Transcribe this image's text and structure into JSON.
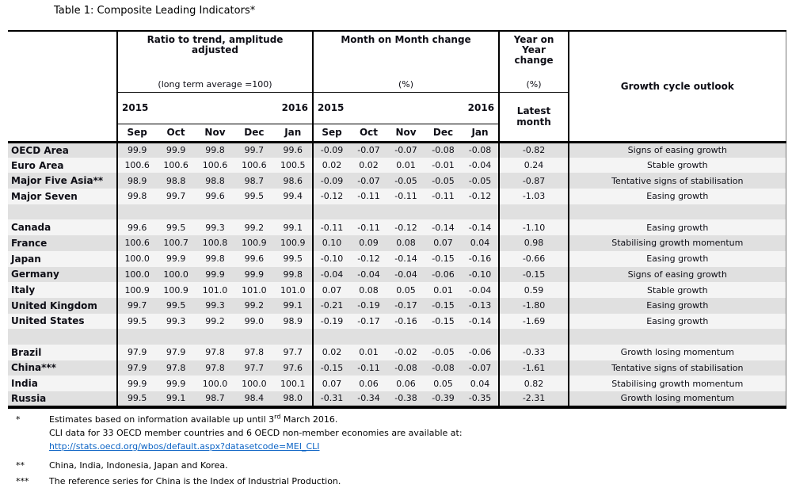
{
  "title": "Table 1: Composite Leading Indicators*",
  "header": {
    "ratio": {
      "title": "Ratio to trend, amplitude adjusted",
      "subtitle": "(long term average =100)",
      "year_left": "2015",
      "year_right": "2016",
      "months": [
        "Sep",
        "Oct",
        "Nov",
        "Dec",
        "Jan"
      ]
    },
    "mom": {
      "title": "Month on Month change",
      "subtitle": "(%)",
      "year_left": "2015",
      "year_right": "2016",
      "months": [
        "Sep",
        "Oct",
        "Nov",
        "Dec",
        "Jan"
      ]
    },
    "yoy": {
      "title": "Year on Year change",
      "subtitle": "(%)",
      "latest": "Latest month"
    },
    "outlook": {
      "title": "Growth cycle outlook"
    }
  },
  "rows": [
    {
      "name": "OECD Area",
      "ratio": [
        "99.9",
        "99.9",
        "99.8",
        "99.7",
        "99.6"
      ],
      "mom": [
        "-0.09",
        "-0.07",
        "-0.07",
        "-0.08",
        "-0.08"
      ],
      "yoy": "-0.82",
      "outlook": "Signs of easing growth"
    },
    {
      "name": "Euro Area",
      "ratio": [
        "100.6",
        "100.6",
        "100.6",
        "100.6",
        "100.5"
      ],
      "mom": [
        "0.02",
        "0.02",
        "0.01",
        "-0.01",
        "-0.04"
      ],
      "yoy": "0.24",
      "outlook": "Stable growth"
    },
    {
      "name": "Major Five Asia**",
      "ratio": [
        "98.9",
        "98.8",
        "98.8",
        "98.7",
        "98.6"
      ],
      "mom": [
        "-0.09",
        "-0.07",
        "-0.05",
        "-0.05",
        "-0.05"
      ],
      "yoy": "-0.87",
      "outlook": "Tentative signs of stabilisation"
    },
    {
      "name": "Major Seven",
      "ratio": [
        "99.8",
        "99.7",
        "99.6",
        "99.5",
        "99.4"
      ],
      "mom": [
        "-0.12",
        "-0.11",
        "-0.11",
        "-0.11",
        "-0.12"
      ],
      "yoy": "-1.03",
      "outlook": "Easing growth"
    },
    {
      "spacer": true
    },
    {
      "name": "Canada",
      "ratio": [
        "99.6",
        "99.5",
        "99.3",
        "99.2",
        "99.1"
      ],
      "mom": [
        "-0.11",
        "-0.11",
        "-0.12",
        "-0.14",
        "-0.14"
      ],
      "yoy": "-1.10",
      "outlook": "Easing growth"
    },
    {
      "name": "France",
      "ratio": [
        "100.6",
        "100.7",
        "100.8",
        "100.9",
        "100.9"
      ],
      "mom": [
        "0.10",
        "0.09",
        "0.08",
        "0.07",
        "0.04"
      ],
      "yoy": "0.98",
      "outlook": "Stabilising growth momentum"
    },
    {
      "name": "Japan",
      "ratio": [
        "100.0",
        "99.9",
        "99.8",
        "99.6",
        "99.5"
      ],
      "mom": [
        "-0.10",
        "-0.12",
        "-0.14",
        "-0.15",
        "-0.16"
      ],
      "yoy": "-0.66",
      "outlook": "Easing growth"
    },
    {
      "name": "Germany",
      "ratio": [
        "100.0",
        "100.0",
        "99.9",
        "99.9",
        "99.8"
      ],
      "mom": [
        "-0.04",
        "-0.04",
        "-0.04",
        "-0.06",
        "-0.10"
      ],
      "yoy": "-0.15",
      "outlook": "Signs of easing growth"
    },
    {
      "name": "Italy",
      "ratio": [
        "100.9",
        "100.9",
        "101.0",
        "101.0",
        "101.0"
      ],
      "mom": [
        "0.07",
        "0.08",
        "0.05",
        "0.01",
        "-0.04"
      ],
      "yoy": "0.59",
      "outlook": "Stable growth"
    },
    {
      "name": "United Kingdom",
      "ratio": [
        "99.7",
        "99.5",
        "99.3",
        "99.2",
        "99.1"
      ],
      "mom": [
        "-0.21",
        "-0.19",
        "-0.17",
        "-0.15",
        "-0.13"
      ],
      "yoy": "-1.80",
      "outlook": "Easing growth"
    },
    {
      "name": "United States",
      "ratio": [
        "99.5",
        "99.3",
        "99.2",
        "99.0",
        "98.9"
      ],
      "mom": [
        "-0.19",
        "-0.17",
        "-0.16",
        "-0.15",
        "-0.14"
      ],
      "yoy": "-1.69",
      "outlook": "Easing growth"
    },
    {
      "spacer": true
    },
    {
      "name": "Brazil",
      "ratio": [
        "97.9",
        "97.9",
        "97.8",
        "97.8",
        "97.7"
      ],
      "mom": [
        "0.02",
        "0.01",
        "-0.02",
        "-0.05",
        "-0.06"
      ],
      "yoy": "-0.33",
      "outlook": "Growth losing momentum"
    },
    {
      "name": "China***",
      "ratio": [
        "97.9",
        "97.8",
        "97.8",
        "97.7",
        "97.6"
      ],
      "mom": [
        "-0.15",
        "-0.11",
        "-0.08",
        "-0.08",
        "-0.07"
      ],
      "yoy": "-1.61",
      "outlook": "Tentative signs of stabilisation"
    },
    {
      "name": "India",
      "ratio": [
        "99.9",
        "99.9",
        "100.0",
        "100.0",
        "100.1"
      ],
      "mom": [
        "0.07",
        "0.06",
        "0.06",
        "0.05",
        "0.04"
      ],
      "yoy": "0.82",
      "outlook": "Stabilising growth momentum"
    },
    {
      "name": "Russia",
      "ratio": [
        "99.5",
        "99.1",
        "98.7",
        "98.4",
        "98.0"
      ],
      "mom": [
        "-0.31",
        "-0.34",
        "-0.38",
        "-0.39",
        "-0.35"
      ],
      "yoy": "-2.31",
      "outlook": "Growth losing momentum"
    }
  ],
  "notes": {
    "star1": {
      "marker": "*",
      "line1_pre": "Estimates based on information available up until 3",
      "line1_sup": "rd",
      "line1_post": " March 2016.",
      "line2": "CLI data for 33 OECD member countries and 6 OECD non-member economies are available at:",
      "link": "http://stats.oecd.org/wbos/default.aspx?datasetcode=MEI_CLI"
    },
    "star2": {
      "marker": "**",
      "text": "China, India, Indonesia, Japan and Korea."
    },
    "star3": {
      "marker": "***",
      "text": "The reference series for China is the Index of Industrial Production."
    }
  },
  "colors": {
    "row_gray": "#e0e0e0",
    "row_light": "#f4f4f4",
    "link_blue": "#0b63c5",
    "border": "#000000"
  }
}
